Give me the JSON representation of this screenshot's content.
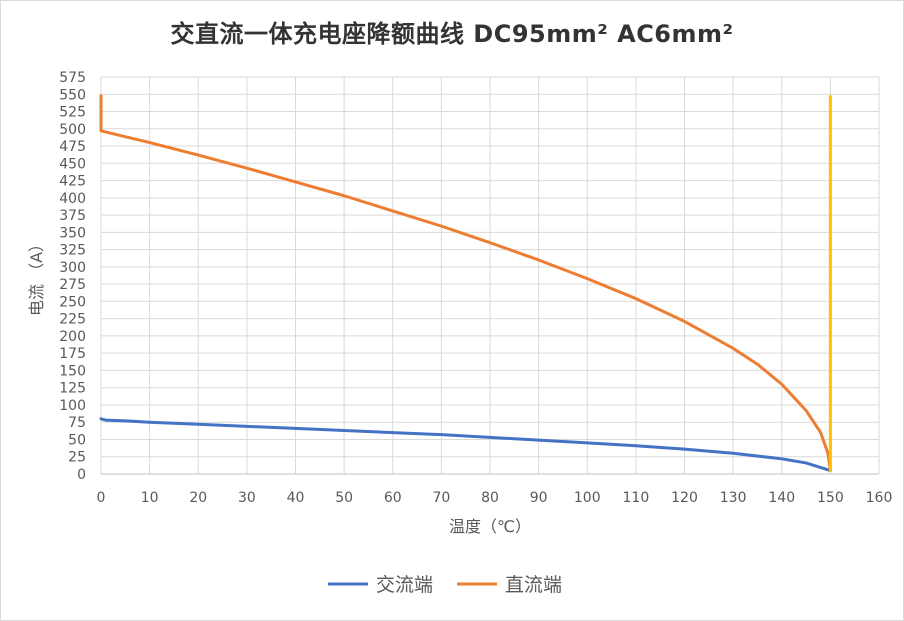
{
  "chart_data": {
    "type": "line",
    "title": "交直流一体充电座降额曲线 DC95mm² AC6mm²",
    "xlabel": "温度（℃）",
    "ylabel": "电流 （A）",
    "xlim": [
      0,
      160
    ],
    "ylim": [
      0,
      575
    ],
    "xticks": [
      0,
      10,
      20,
      30,
      40,
      50,
      60,
      70,
      80,
      90,
      100,
      110,
      120,
      130,
      140,
      150,
      160
    ],
    "yticks": [
      0,
      25,
      50,
      75,
      100,
      125,
      150,
      175,
      200,
      225,
      250,
      275,
      300,
      325,
      350,
      375,
      400,
      425,
      450,
      475,
      500,
      525,
      550,
      575
    ],
    "grid": true,
    "legend_position": "bottom",
    "series": [
      {
        "name": "交流端",
        "color": "#4472c4",
        "points": [
          [
            0,
            80
          ],
          [
            1,
            78
          ],
          [
            5,
            77
          ],
          [
            10,
            75
          ],
          [
            20,
            72
          ],
          [
            30,
            69
          ],
          [
            40,
            66
          ],
          [
            50,
            63
          ],
          [
            60,
            60
          ],
          [
            70,
            57
          ],
          [
            80,
            53
          ],
          [
            90,
            49
          ],
          [
            100,
            45
          ],
          [
            110,
            41
          ],
          [
            120,
            36
          ],
          [
            130,
            30
          ],
          [
            140,
            22
          ],
          [
            145,
            16
          ],
          [
            150,
            5
          ]
        ]
      },
      {
        "name": "直流端",
        "color": "#ed7d31",
        "points": [
          [
            0,
            548
          ],
          [
            0,
            497
          ],
          [
            10,
            480
          ],
          [
            20,
            462
          ],
          [
            30,
            443
          ],
          [
            40,
            423
          ],
          [
            50,
            403
          ],
          [
            60,
            381
          ],
          [
            70,
            359
          ],
          [
            80,
            335
          ],
          [
            90,
            310
          ],
          [
            100,
            283
          ],
          [
            110,
            254
          ],
          [
            120,
            221
          ],
          [
            130,
            182
          ],
          [
            135,
            159
          ],
          [
            140,
            130
          ],
          [
            145,
            92
          ],
          [
            148,
            60
          ],
          [
            149.5,
            30
          ],
          [
            150,
            5
          ]
        ]
      },
      {
        "color": "#ffc000",
        "points": [
          [
            150,
            5
          ],
          [
            150,
            547
          ]
        ]
      }
    ]
  }
}
